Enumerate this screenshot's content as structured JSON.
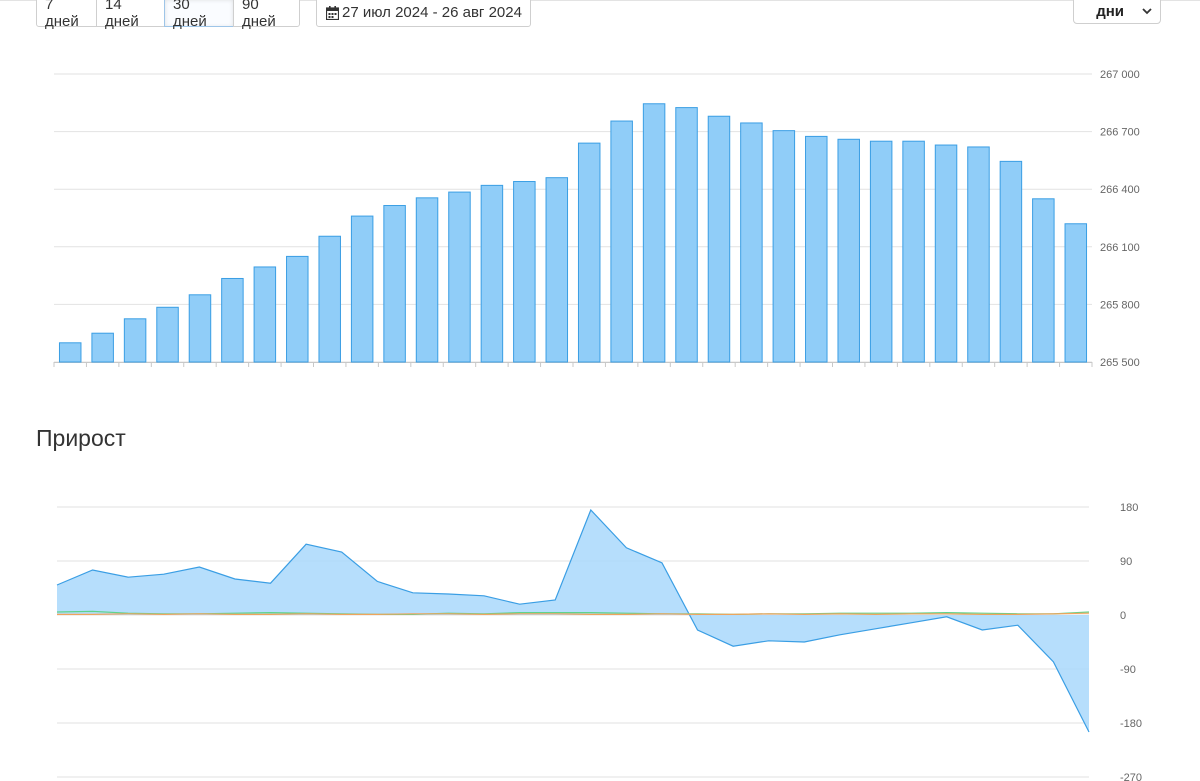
{
  "toolbar": {
    "periods": [
      {
        "label": "7 дней",
        "active": false
      },
      {
        "label": "14 дней",
        "active": false
      },
      {
        "label": "30 дней",
        "active": true
      },
      {
        "label": "90 дней",
        "active": false
      }
    ],
    "date_range": "27 июл 2024 - 26 авг 2024",
    "calendar_icon": "calendar-icon",
    "granularity": "дни",
    "granularity_icon": "chevron-down-icon"
  },
  "growth_title": "Прирост",
  "colors": {
    "bar_fill": "#90cdf8",
    "bar_stroke": "#3a9ee4",
    "area_fill": "#a9d8fb",
    "area_stroke": "#3a9ee4",
    "line_green": "#5fd38d",
    "line_orange": "#f0a45c"
  },
  "chart_data": [
    {
      "type": "bar",
      "y_ticks": [
        "267 000",
        "266 700",
        "266 400",
        "266 100",
        "265 800",
        "265 500"
      ],
      "ylim": [
        265500,
        267000
      ],
      "grid": true,
      "values": [
        265600,
        265650,
        265725,
        265785,
        265850,
        265935,
        265995,
        266050,
        266155,
        266260,
        266315,
        266355,
        266385,
        266420,
        266440,
        266460,
        266640,
        266755,
        266845,
        266825,
        266780,
        266745,
        266705,
        266675,
        266660,
        266650,
        266650,
        266630,
        266620,
        266545,
        266350,
        266220
      ]
    },
    {
      "type": "area",
      "title": "Прирост",
      "y_ticks": [
        "180",
        "90",
        "0",
        "-90",
        "-180",
        "-270"
      ],
      "ylim": [
        -270,
        180
      ],
      "grid": true,
      "series": [
        {
          "values": [
            50,
            75,
            63,
            68,
            80,
            60,
            53,
            118,
            105,
            56,
            37,
            35,
            32,
            18,
            25,
            175,
            112,
            87,
            -25,
            -52,
            -43,
            -45,
            -33,
            -23,
            -13,
            -3,
            -25,
            -17,
            -78,
            -195
          ]
        },
        {
          "values": [
            5,
            6,
            3,
            2,
            2,
            3,
            4,
            3,
            2,
            1,
            1,
            3,
            2,
            4,
            4,
            4,
            3,
            2,
            2,
            1,
            2,
            2,
            3,
            3,
            3,
            4,
            3,
            2,
            2,
            5
          ]
        },
        {
          "values": [
            1,
            1,
            2,
            1,
            2,
            1,
            1,
            2,
            1,
            1,
            2,
            2,
            1,
            2,
            2,
            1,
            1,
            2,
            1,
            1,
            2,
            1,
            2,
            1,
            2,
            2,
            1,
            1,
            2,
            3
          ]
        }
      ]
    }
  ]
}
